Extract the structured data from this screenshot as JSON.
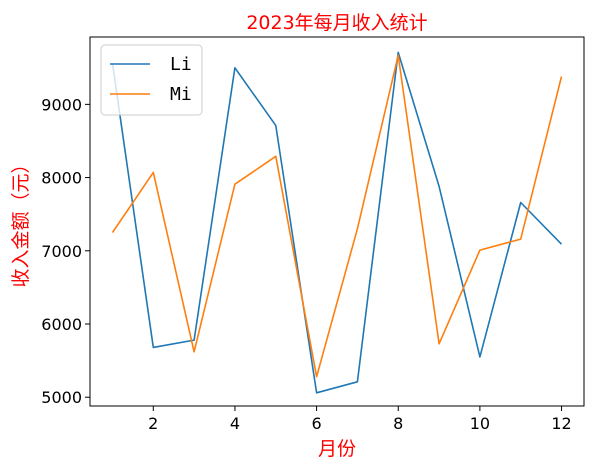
{
  "chart_data": {
    "type": "line",
    "title": "2023年每月收入统计",
    "xlabel": "月份",
    "ylabel": "收入金额（元）",
    "x": [
      1,
      2,
      3,
      4,
      5,
      6,
      7,
      8,
      9,
      10,
      11,
      12
    ],
    "xlim": [
      0.45,
      12.55
    ],
    "ylim": [
      4880,
      9920
    ],
    "xticks": [
      2,
      4,
      6,
      8,
      10,
      12
    ],
    "yticks": [
      5000,
      6000,
      7000,
      8000,
      9000
    ],
    "grid": false,
    "legend_position": "top-left",
    "series": [
      {
        "name": "Li",
        "color": "#1f77b4",
        "values": [
          9560,
          5680,
          5780,
          9500,
          8710,
          5060,
          5210,
          9710,
          7880,
          5550,
          7660,
          7090
        ]
      },
      {
        "name": "Mi",
        "color": "#ff7f0e",
        "values": [
          7250,
          8070,
          5620,
          7910,
          8290,
          5280,
          7300,
          9670,
          5730,
          7010,
          7160,
          9380
        ]
      }
    ]
  }
}
